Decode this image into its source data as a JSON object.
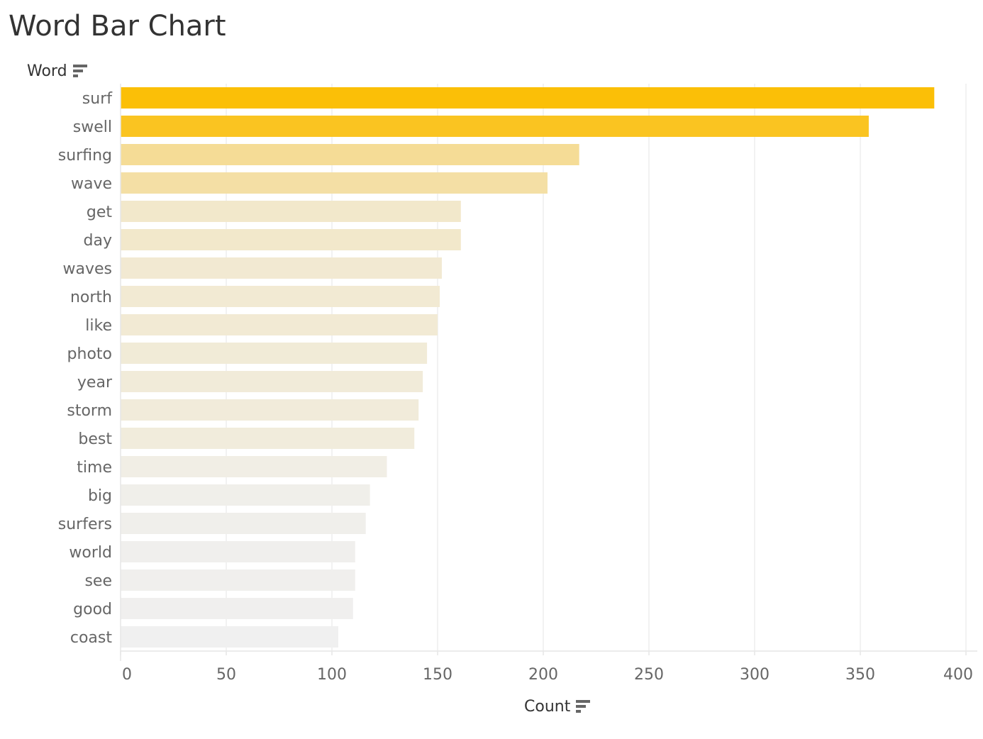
{
  "title": "Word Bar Chart",
  "y_header": "Word",
  "x_header": "Count",
  "icons": {
    "sort": "sort-descending-icon"
  },
  "chart_data": {
    "type": "bar",
    "orientation": "horizontal",
    "title": "Word Bar Chart",
    "xlabel": "Count",
    "ylabel": "Word",
    "xlim": [
      0,
      400
    ],
    "x_ticks": [
      0,
      50,
      100,
      150,
      200,
      250,
      300,
      350,
      400
    ],
    "grid": true,
    "categories": [
      "surf",
      "swell",
      "surfing",
      "wave",
      "get",
      "day",
      "waves",
      "north",
      "like",
      "photo",
      "year",
      "storm",
      "best",
      "time",
      "big",
      "surfers",
      "world",
      "see",
      "good",
      "coast"
    ],
    "values": [
      385,
      354,
      217,
      202,
      161,
      161,
      152,
      151,
      150,
      145,
      143,
      141,
      139,
      126,
      118,
      116,
      111,
      111,
      110,
      103
    ],
    "color_scale": {
      "low": "#f0f0f0",
      "mid": "#f5dc96",
      "high": "#fbbf07"
    }
  }
}
